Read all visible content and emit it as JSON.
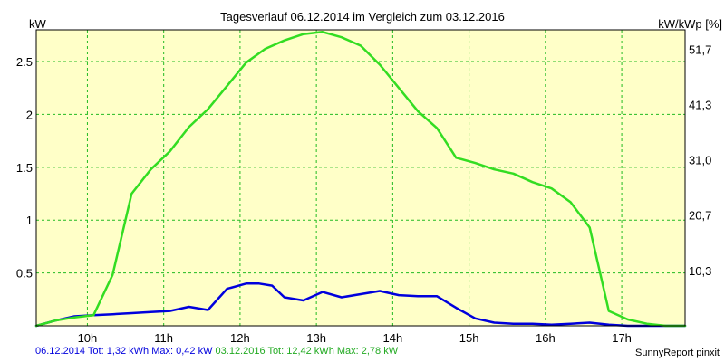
{
  "chart_data": {
    "type": "line",
    "title": "Tagesverlauf 06.12.2014 im Vergleich zum 03.12.2016",
    "y_left_label": "kW",
    "y_right_label": "kW/kWp [%]",
    "xlim": [
      9.33,
      17.83
    ],
    "ylim": [
      0,
      2.8
    ],
    "x_ticks": [
      {
        "value": 10,
        "label": "10h"
      },
      {
        "value": 11,
        "label": "11h"
      },
      {
        "value": 12,
        "label": "12h"
      },
      {
        "value": 13,
        "label": "13h"
      },
      {
        "value": 14,
        "label": "14h"
      },
      {
        "value": 15,
        "label": "15h"
      },
      {
        "value": 16,
        "label": "16h"
      },
      {
        "value": 17,
        "label": "17h"
      }
    ],
    "y_left_ticks": [
      {
        "value": 0.5,
        "label": "0.5"
      },
      {
        "value": 1,
        "label": "1"
      },
      {
        "value": 1.5,
        "label": "1.5"
      },
      {
        "value": 2,
        "label": "2"
      },
      {
        "value": 2.5,
        "label": "2.5"
      }
    ],
    "y_right_ticks": [
      {
        "value": 0.523,
        "label": "10,3"
      },
      {
        "value": 1.047,
        "label": "20,7"
      },
      {
        "value": 1.57,
        "label": "31,0"
      },
      {
        "value": 2.093,
        "label": "41,3"
      },
      {
        "value": 2.617,
        "label": "51,7"
      }
    ],
    "grid": true,
    "series": [
      {
        "key": "blue",
        "color": "#0000dd",
        "x": [
          9.33,
          9.58,
          9.83,
          10.08,
          10.33,
          10.58,
          10.83,
          11.08,
          11.33,
          11.58,
          11.83,
          12.08,
          12.25,
          12.42,
          12.58,
          12.83,
          13.08,
          13.33,
          13.58,
          13.83,
          14.08,
          14.33,
          14.58,
          14.83,
          15.08,
          15.33,
          15.58,
          15.83,
          16.08,
          16.33,
          16.58,
          16.83,
          17.08,
          17.33,
          17.58,
          17.83
        ],
        "y": [
          0.0,
          0.05,
          0.09,
          0.1,
          0.11,
          0.12,
          0.13,
          0.14,
          0.18,
          0.15,
          0.35,
          0.4,
          0.4,
          0.38,
          0.27,
          0.24,
          0.32,
          0.27,
          0.3,
          0.33,
          0.29,
          0.28,
          0.28,
          0.17,
          0.07,
          0.03,
          0.02,
          0.02,
          0.01,
          0.02,
          0.03,
          0.01,
          0.0,
          0.0,
          0.0,
          0.0
        ]
      },
      {
        "key": "green",
        "color": "#33dd22",
        "x": [
          9.33,
          9.58,
          9.83,
          10.08,
          10.33,
          10.58,
          10.83,
          11.08,
          11.33,
          11.58,
          11.83,
          12.08,
          12.33,
          12.58,
          12.83,
          13.08,
          13.33,
          13.58,
          13.83,
          14.08,
          14.33,
          14.58,
          14.83,
          15.08,
          15.33,
          15.58,
          15.83,
          16.08,
          16.33,
          16.58,
          16.83,
          17.08,
          17.33,
          17.58,
          17.83
        ],
        "y": [
          0.0,
          0.05,
          0.08,
          0.1,
          0.48,
          1.25,
          1.48,
          1.65,
          1.88,
          2.05,
          2.27,
          2.49,
          2.62,
          2.7,
          2.76,
          2.78,
          2.73,
          2.65,
          2.47,
          2.25,
          2.03,
          1.87,
          1.59,
          1.54,
          1.48,
          1.44,
          1.36,
          1.3,
          1.17,
          0.93,
          0.14,
          0.06,
          0.02,
          0.0,
          0.0
        ]
      }
    ]
  },
  "footer": {
    "blue_text": "06.12.2014 Tot: 1,32 kWh Max: 0,42 kW",
    "green_text": "03.12.2016 Tot: 12,42 kWh Max: 2,78 kW",
    "brand": "SunnyReport pinxit"
  },
  "colors": {
    "plot_background": "#ffffc8",
    "grid": "#22bb22",
    "blue": "#0000dd",
    "green": "#33dd22"
  }
}
